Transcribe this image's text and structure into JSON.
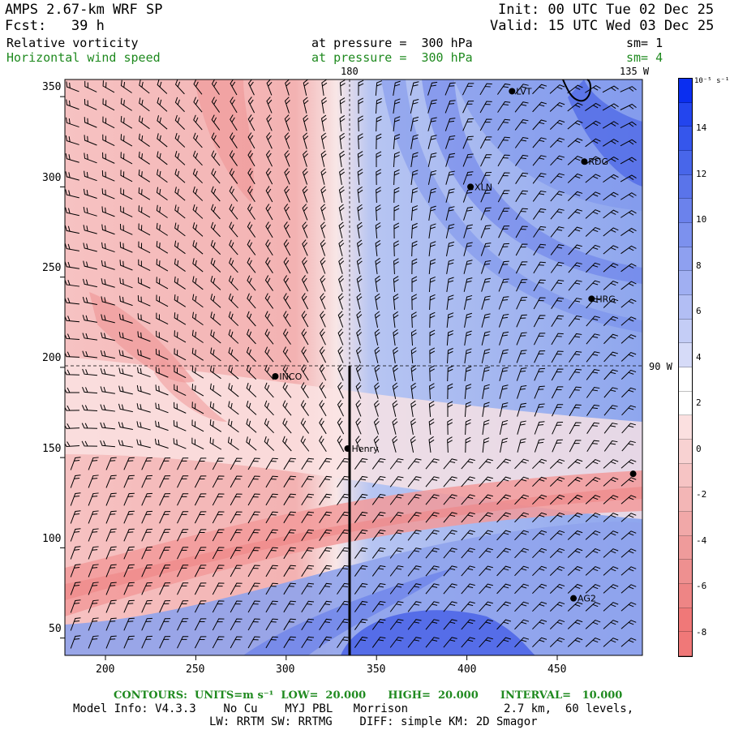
{
  "header": {
    "model": "AMPS 2.67-km WRF SP",
    "forecast": "Fcst:   39 h",
    "init": "Init: 00 UTC Tue 02 Dec 25",
    "valid": "Valid: 15 UTC Wed 03 Dec 25",
    "field1_name": "Relative vorticity",
    "field1_level": "at pressure =  300 hPa",
    "field1_sm": "sm= 1",
    "field2_name": "Horizontal wind speed",
    "field2_level": "at pressure =  300 hPa",
    "field2_sm": "sm= 4"
  },
  "map": {
    "meridian_label_top": "180",
    "meridian_label_right_top": "135 W",
    "parallel_label": "90 W",
    "x_ticks": [
      "200",
      "250",
      "300",
      "350",
      "400",
      "450"
    ],
    "y_ticks": [
      "350",
      "300",
      "250",
      "200",
      "150",
      "100",
      "50"
    ],
    "stations": [
      {
        "label": "LVT",
        "x": 425,
        "y": 353
      },
      {
        "label": "RDG",
        "x": 465,
        "y": 314
      },
      {
        "label": "XLN",
        "x": 402,
        "y": 300
      },
      {
        "label": "HRG",
        "x": 469,
        "y": 238
      },
      {
        "label": "INCO",
        "x": 294,
        "y": 195
      },
      {
        "label": "Henry",
        "x": 334,
        "y": 155
      },
      {
        "label": "",
        "x": 492,
        "y": 141
      },
      {
        "label": "AG2",
        "x": 459,
        "y": 72
      }
    ]
  },
  "colorbar": {
    "unit": "10⁻⁵ s⁻¹",
    "labels": [
      "14",
      "12",
      "10",
      "8",
      "6",
      "4",
      "2",
      "0",
      "-2",
      "-4",
      "-6",
      "-8"
    ],
    "top_color": "#0a2ef0",
    "bottom_color": "#f07878"
  },
  "footer": {
    "contours": "CONTOURS:  UNITS=m s⁻¹  LOW=  20.000      HIGH=  20.000      INTERVAL=   10.000",
    "model_info": "Model Info: V4.3.3    No Cu    MYJ PBL   Morrison              2.7 km,  60 levels,",
    "physics": "LW: RRTM SW: RRTMG    DIFF: simple KM: 2D Smagor"
  }
}
